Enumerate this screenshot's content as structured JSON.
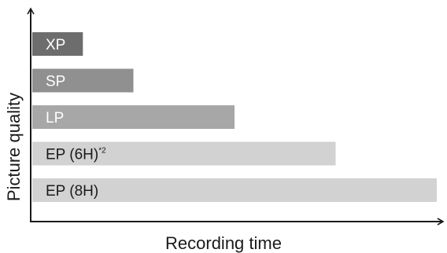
{
  "chart_data": {
    "type": "bar",
    "orientation": "horizontal",
    "title": "",
    "xlabel": "Recording time",
    "ylabel": "Picture quality",
    "categories": [
      "XP",
      "SP",
      "LP",
      "EP (6H)",
      "EP (8H)"
    ],
    "category_superscripts": [
      "",
      "",
      "",
      "*2",
      ""
    ],
    "values": [
      1,
      2,
      4,
      6,
      8
    ],
    "xlim": [
      0,
      8
    ],
    "grid": false,
    "legend": "none",
    "bar_colors": [
      "#6d6d6d",
      "#909090",
      "#a7a7a7",
      "#d2d2d2",
      "#d2d2d2"
    ],
    "label_colors": [
      "#ffffff",
      "#ffffff",
      "#ffffff",
      "#1a1a1a",
      "#1a1a1a"
    ],
    "axis_color": "#1a1a1a"
  }
}
